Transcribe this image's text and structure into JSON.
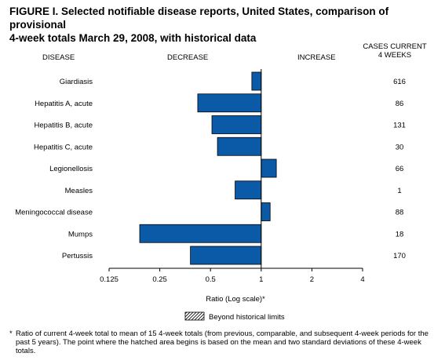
{
  "figure": {
    "title_line1": "FIGURE I. Selected notifiable disease reports, United States, comparison of provisional",
    "title_line2": "4-week totals March 29, 2008, with historical data",
    "header_disease": "DISEASE",
    "header_decrease": "DECREASE",
    "header_increase": "INCREASE",
    "header_cases_line1": "CASES CURRENT",
    "header_cases_line2": "4 WEEKS",
    "footnote_star": "*",
    "footnote_text": "Ratio of current 4-week total to mean of 15 4-week totals (from previous, comparable, and subsequent 4-week periods for the past 5 years). The point where the hatched area begins is based on the mean and two standard deviations of these 4-week totals."
  },
  "chart_data": {
    "type": "bar",
    "orientation": "horizontal",
    "categories": [
      "Giardiasis",
      "Hepatitis A, acute",
      "Hepatitis B, acute",
      "Hepatitis C, acute",
      "Legionellosis",
      "Measles",
      "Meningococcal disease",
      "Mumps",
      "Pertussis"
    ],
    "values": [
      0.88,
      0.42,
      0.51,
      0.55,
      1.23,
      0.7,
      1.13,
      0.19,
      0.38
    ],
    "cases_current_4_weeks": [
      "616",
      "86",
      "131",
      "30",
      "66",
      "1",
      "88",
      "18",
      "170"
    ],
    "xlabel": "Ratio (Log scale)*",
    "xscale": "log2",
    "xlim": [
      0.125,
      4
    ],
    "xticks": [
      0.125,
      0.25,
      0.5,
      1,
      2,
      4
    ],
    "xtick_labels": [
      "0.125",
      "0.25",
      "0.5",
      "1",
      "2",
      "4"
    ],
    "baseline": 1,
    "bar_color": "#0b5aa8",
    "bar_edge_color": "#000000",
    "legend": {
      "label": "Beyond historical limits",
      "pattern": "hatched",
      "placement": "bottom-center"
    },
    "grid": false
  }
}
